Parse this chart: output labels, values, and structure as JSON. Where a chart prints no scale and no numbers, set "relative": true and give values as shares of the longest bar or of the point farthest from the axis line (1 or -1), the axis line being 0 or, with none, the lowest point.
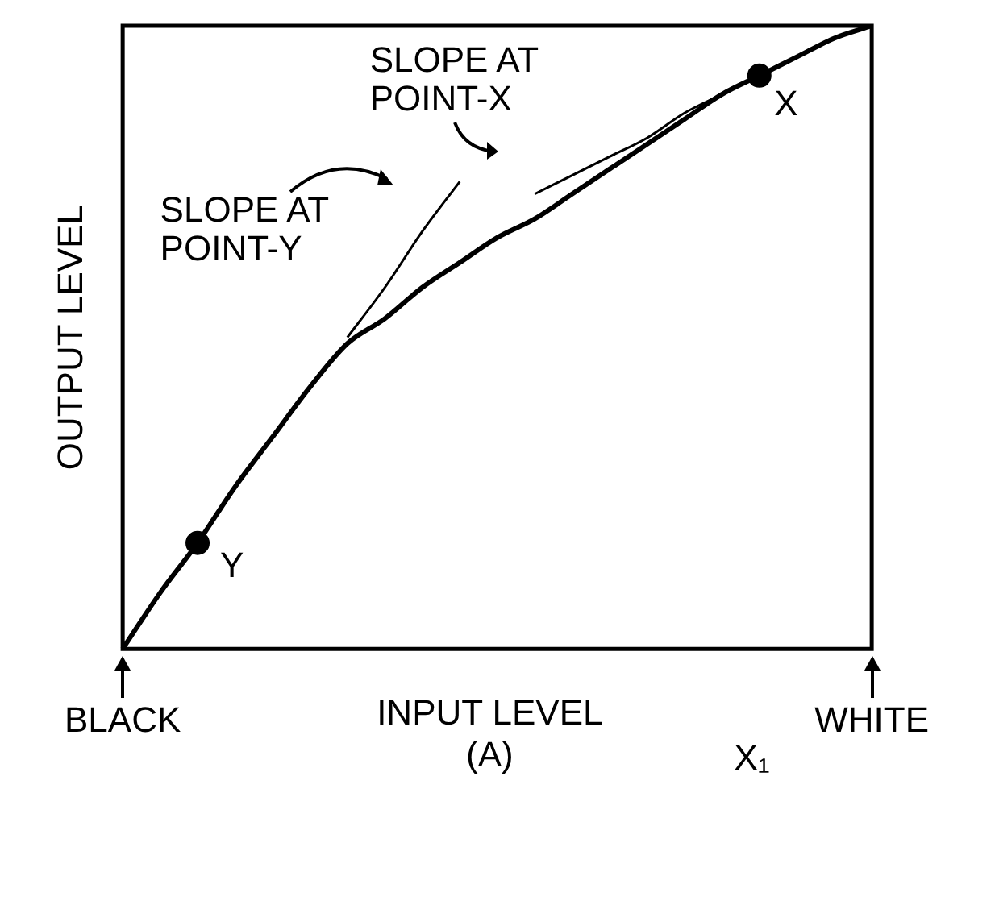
{
  "chart_data": {
    "type": "line",
    "relative": true,
    "xlabel": "INPUT LEVEL",
    "ylabel": "OUTPUT LEVEL",
    "categories": [
      "BLACK",
      null,
      null,
      null,
      null,
      null,
      null,
      null,
      null,
      null,
      null,
      null,
      null,
      null,
      null,
      null,
      null,
      null,
      null,
      null,
      "WHITE"
    ],
    "series": [
      {
        "color": "#000000",
        "marker": "none",
        "values": [
          0,
          0.09,
          0.17,
          0.26,
          0.34,
          0.42,
          0.49,
          0.53,
          0.58,
          0.62,
          0.66,
          0.69,
          0.73,
          0.77,
          0.81,
          0.85,
          0.89,
          0.92,
          0.95,
          0.98,
          1
        ]
      },
      {
        "color": "#000000",
        "marker": "none",
        "values": [
          null,
          null,
          null,
          null,
          null,
          null,
          0.5,
          0.58,
          0.67,
          0.75,
          null,
          null,
          null,
          null,
          null,
          null,
          null,
          null,
          null,
          null,
          null
        ]
      },
      {
        "color": "#000000",
        "marker": "none",
        "values": [
          null,
          null,
          null,
          null,
          null,
          null,
          null,
          null,
          null,
          null,
          null,
          0.73,
          0.76,
          0.79,
          0.82,
          0.86,
          0.89,
          0.92,
          0.95,
          0.98,
          null
        ]
      },
      {
        "type": "scatter",
        "color": "#000000",
        "marker": "circle",
        "values": [
          null,
          null,
          0.17,
          null,
          null,
          null,
          null,
          null,
          null,
          null,
          null,
          null,
          null,
          null,
          null,
          null,
          null,
          0.92,
          null,
          null,
          null
        ]
      }
    ],
    "annotations": [
      "SLOPE AT POINT-X",
      "SLOPE AT POINT-Y",
      "X",
      "Y",
      "(A)",
      "X₁"
    ],
    "grid": false,
    "legend": false
  }
}
